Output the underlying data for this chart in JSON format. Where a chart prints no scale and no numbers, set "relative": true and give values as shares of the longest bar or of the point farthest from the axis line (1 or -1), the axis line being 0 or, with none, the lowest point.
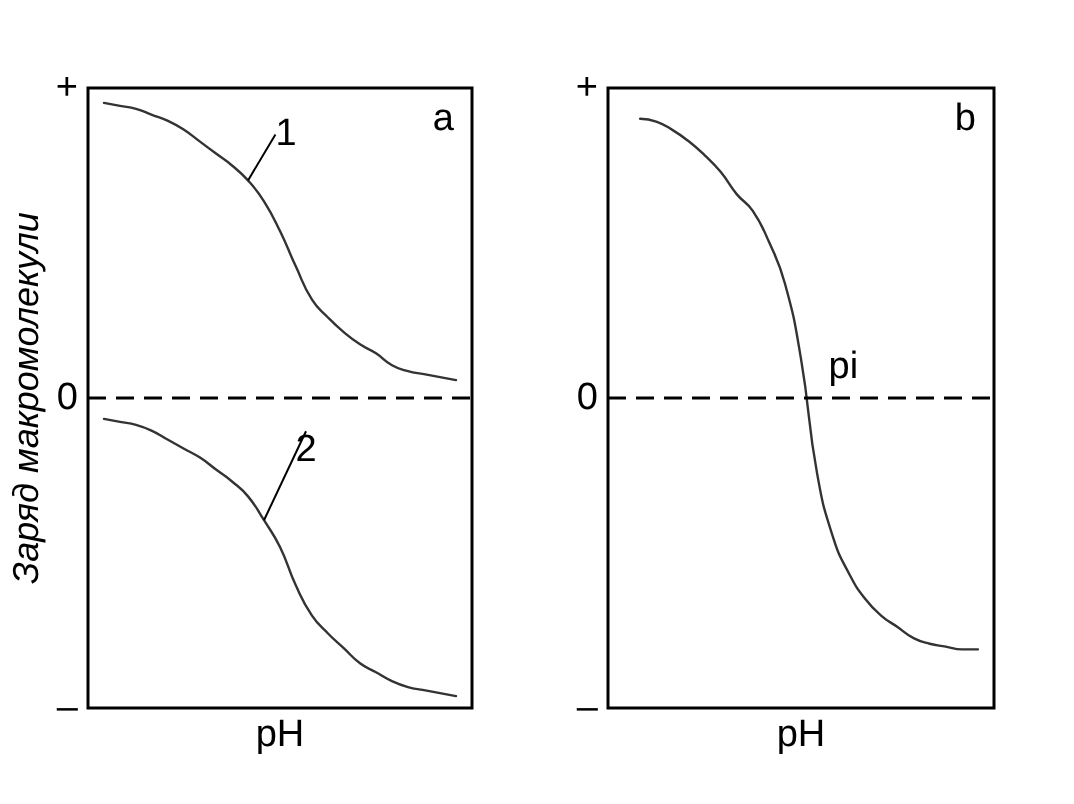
{
  "chart_data": [
    {
      "type": "line",
      "title": "a",
      "xlabel": "pH",
      "ylabel": "Заряд макромолекули",
      "relative": true,
      "categories": [
        null,
        null,
        null,
        null,
        null,
        null,
        null,
        null,
        null,
        null,
        null,
        null,
        null,
        null,
        null,
        null,
        null,
        null,
        null,
        null,
        null,
        null,
        null,
        null,
        null
      ],
      "series": [
        {
          "name": "1",
          "color": "#333333",
          "values": [
            null,
            0.99,
            0.98,
            0.97,
            0.95,
            0.93,
            0.9,
            0.86,
            0.82,
            0.78,
            0.73,
            0.66,
            0.56,
            0.44,
            0.33,
            0.27,
            0.22,
            0.18,
            0.15,
            0.11,
            0.09,
            0.08,
            0.07,
            0.06,
            null
          ]
        },
        {
          "name": "2",
          "color": "#333333",
          "values": [
            null,
            -0.07,
            -0.08,
            -0.09,
            -0.11,
            -0.14,
            -0.17,
            -0.2,
            -0.24,
            -0.28,
            -0.33,
            -0.41,
            -0.5,
            -0.63,
            -0.73,
            -0.79,
            -0.84,
            -0.89,
            -0.92,
            -0.95,
            -0.97,
            -0.98,
            -0.99,
            -1,
            null
          ]
        }
      ],
      "ref_lines": [
        {
          "axis": "y",
          "value": 0,
          "color": "#000000",
          "line_style": "dashed"
        }
      ],
      "annotations": [
        "+",
        "0",
        "–"
      ],
      "grid": false,
      "marker": "none",
      "line_style": "solid"
    },
    {
      "type": "line",
      "title": "b",
      "xlabel": "pH",
      "relative": true,
      "categories": [
        null,
        null,
        null,
        null,
        null,
        null,
        null,
        null,
        null,
        null,
        null,
        null,
        null,
        null,
        null,
        null,
        null,
        null,
        null,
        null,
        null,
        null,
        null,
        null,
        null
      ],
      "series": [
        {
          "color": "#333333",
          "values": [
            null,
            null,
            1,
            0.99,
            0.96,
            0.92,
            0.87,
            0.81,
            0.73,
            0.67,
            0.56,
            0.41,
            0.14,
            -0.27,
            -0.5,
            -0.63,
            -0.72,
            -0.78,
            -0.82,
            -0.86,
            -0.88,
            -0.89,
            -0.9,
            -0.9,
            null
          ]
        }
      ],
      "ref_lines": [
        {
          "axis": "y",
          "value": 0,
          "color": "#000000",
          "line_style": "dashed"
        }
      ],
      "annotations": [
        "+",
        "0",
        "–",
        {
          "text": "pi",
          "y": 0
        }
      ],
      "grid": false,
      "marker": "none",
      "line_style": "solid"
    }
  ]
}
